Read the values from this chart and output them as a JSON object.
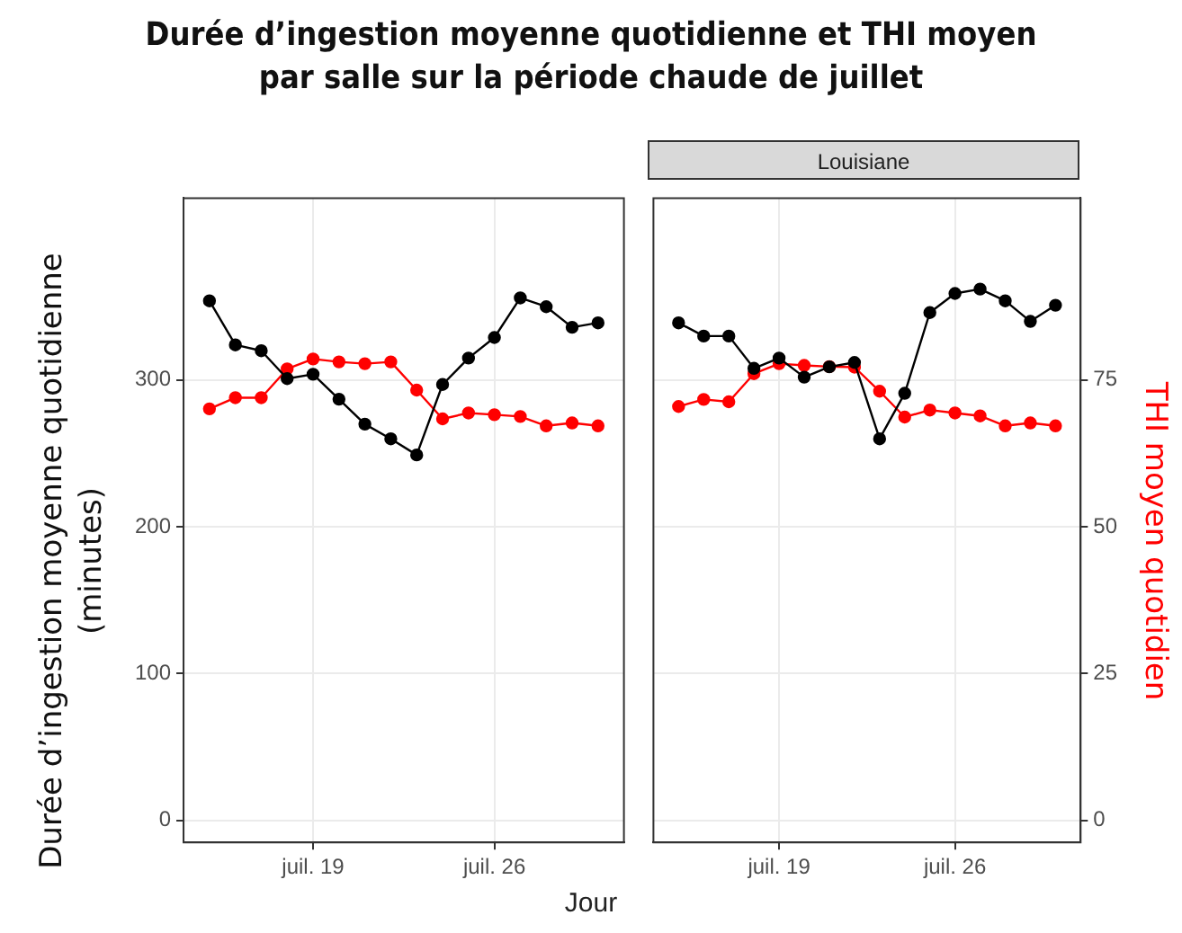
{
  "chart_data": [
    {
      "type": "line",
      "title": "Durée d’ingestion moyenne quotidienne et THI moyen\npar salle sur la période chaude de juillet",
      "ylabel": "Durée d’ingestion moyenne quotidienne\n(minutes)",
      "xlabel": "Jour",
      "x": [
        "--07-15",
        "--07-16",
        "--07-17",
        "--07-18",
        "--07-19",
        "--07-20",
        "--07-21",
        "--07-22",
        "--07-23",
        "--07-24",
        "--07-25",
        "--07-26",
        "--07-27",
        "--07-28",
        "--07-29",
        "--07-30"
      ],
      "series": [
        {
          "color": "#000000",
          "axis": "y",
          "values": [
            354,
            324,
            320,
            301,
            304,
            287,
            270,
            260,
            249,
            297,
            315,
            329,
            356,
            350,
            336,
            339
          ]
        },
        {
          "color": "#ff0000",
          "axis": "y2",
          "values": [
            70.1,
            72.0,
            72.0,
            76.9,
            78.6,
            78.1,
            77.8,
            78.1,
            73.3,
            68.4,
            69.4,
            69.1,
            68.8,
            67.2,
            67.7,
            67.2
          ]
        }
      ],
      "xlim": [
        "--07-14",
        "--07-31"
      ],
      "xticks": [
        {
          "value": "--07-19",
          "label": "juil. 19"
        },
        {
          "value": "--07-26",
          "label": "juil. 26"
        }
      ],
      "ylim": [
        -15,
        424
      ],
      "yticks": [
        0,
        100,
        200,
        300
      ],
      "y2lim": [
        -3.75,
        106
      ],
      "grid": true,
      "legend": false,
      "marker": "circle",
      "line_style": "solid"
    },
    {
      "type": "line",
      "title": "Louisiane",
      "y2label": "THI moyen quotidien",
      "x": [
        "--07-15",
        "--07-16",
        "--07-17",
        "--07-18",
        "--07-19",
        "--07-20",
        "--07-21",
        "--07-22",
        "--07-23",
        "--07-24",
        "--07-25",
        "--07-26",
        "--07-27",
        "--07-28",
        "--07-29",
        "--07-30"
      ],
      "series": [
        {
          "color": "#000000",
          "axis": "y",
          "values": [
            339,
            330,
            330,
            308,
            315,
            302,
            309,
            312,
            260,
            291,
            346,
            359,
            362,
            354,
            340,
            351
          ]
        },
        {
          "color": "#ff0000",
          "axis": "y2",
          "values": [
            70.5,
            71.7,
            71.3,
            76.1,
            77.8,
            77.5,
            77.3,
            77.2,
            73.1,
            68.7,
            69.9,
            69.4,
            68.9,
            67.2,
            67.7,
            67.2
          ]
        }
      ],
      "xlim": [
        "--07-14",
        "--07-31"
      ],
      "xticks": [
        {
          "value": "--07-19",
          "label": "juil. 19"
        },
        {
          "value": "--07-26",
          "label": "juil. 26"
        }
      ],
      "ylim": [
        -15,
        424
      ],
      "y2lim": [
        -3.75,
        106
      ],
      "y2ticks": [
        0,
        25,
        50,
        75
      ],
      "grid": true,
      "legend": false,
      "marker": "circle",
      "line_style": "solid"
    }
  ]
}
